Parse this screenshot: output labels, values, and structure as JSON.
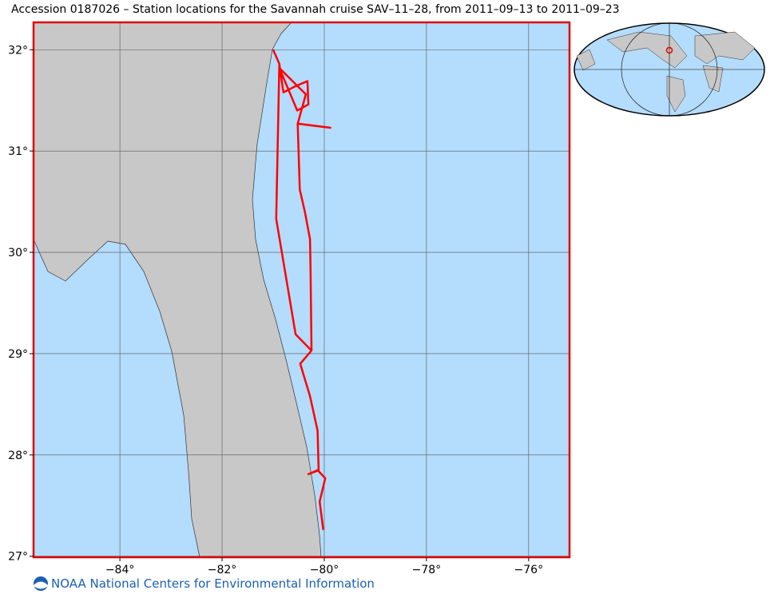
{
  "chart_data": {
    "type": "map",
    "title": "Accession 0187026 – Station locations for the Savannah cruise SAV–11–28, from 2011–09–13 to 2011–09–23",
    "xlim": [
      -85.69,
      -75.2
    ],
    "ylim": [
      26.99,
      32.27
    ],
    "xticks": [
      {
        "value": -84,
        "label": "−84°"
      },
      {
        "value": -82,
        "label": "−82°"
      },
      {
        "value": -80,
        "label": "−80°"
      },
      {
        "value": -78,
        "label": "−78°"
      },
      {
        "value": -76,
        "label": "−76°"
      }
    ],
    "yticks": [
      {
        "value": 27,
        "label": "27°"
      },
      {
        "value": 28,
        "label": "28°"
      },
      {
        "value": 29,
        "label": "29°"
      },
      {
        "value": 30,
        "label": "30°"
      },
      {
        "value": 31,
        "label": "31°"
      },
      {
        "value": 32,
        "label": "32°"
      }
    ],
    "grid": true,
    "track": {
      "color": "#ff0000",
      "x": [
        -81.0,
        -80.88,
        -80.8,
        -80.56,
        -80.33,
        -80.31,
        -80.53,
        -80.88,
        -80.36,
        -80.52,
        -79.88,
        -80.52,
        -80.48,
        -80.38,
        -80.28,
        -80.27,
        -80.25,
        -80.47,
        -80.28,
        -80.13,
        -80.11,
        -80.31,
        -80.13,
        -79.98,
        -80.09,
        -80.02,
        null,
        -80.88,
        -80.94,
        -80.56,
        -80.25
      ],
      "values": [
        32.0,
        31.86,
        31.58,
        31.64,
        31.69,
        31.46,
        31.4,
        31.82,
        31.56,
        31.27,
        31.23,
        31.27,
        30.62,
        30.4,
        30.13,
        29.88,
        29.03,
        28.9,
        28.58,
        28.24,
        27.85,
        27.81,
        27.85,
        27.77,
        27.54,
        27.26,
        null,
        31.86,
        30.33,
        29.19,
        29.03
      ]
    },
    "footer": "NOAA National Centers for Environmental Information"
  }
}
